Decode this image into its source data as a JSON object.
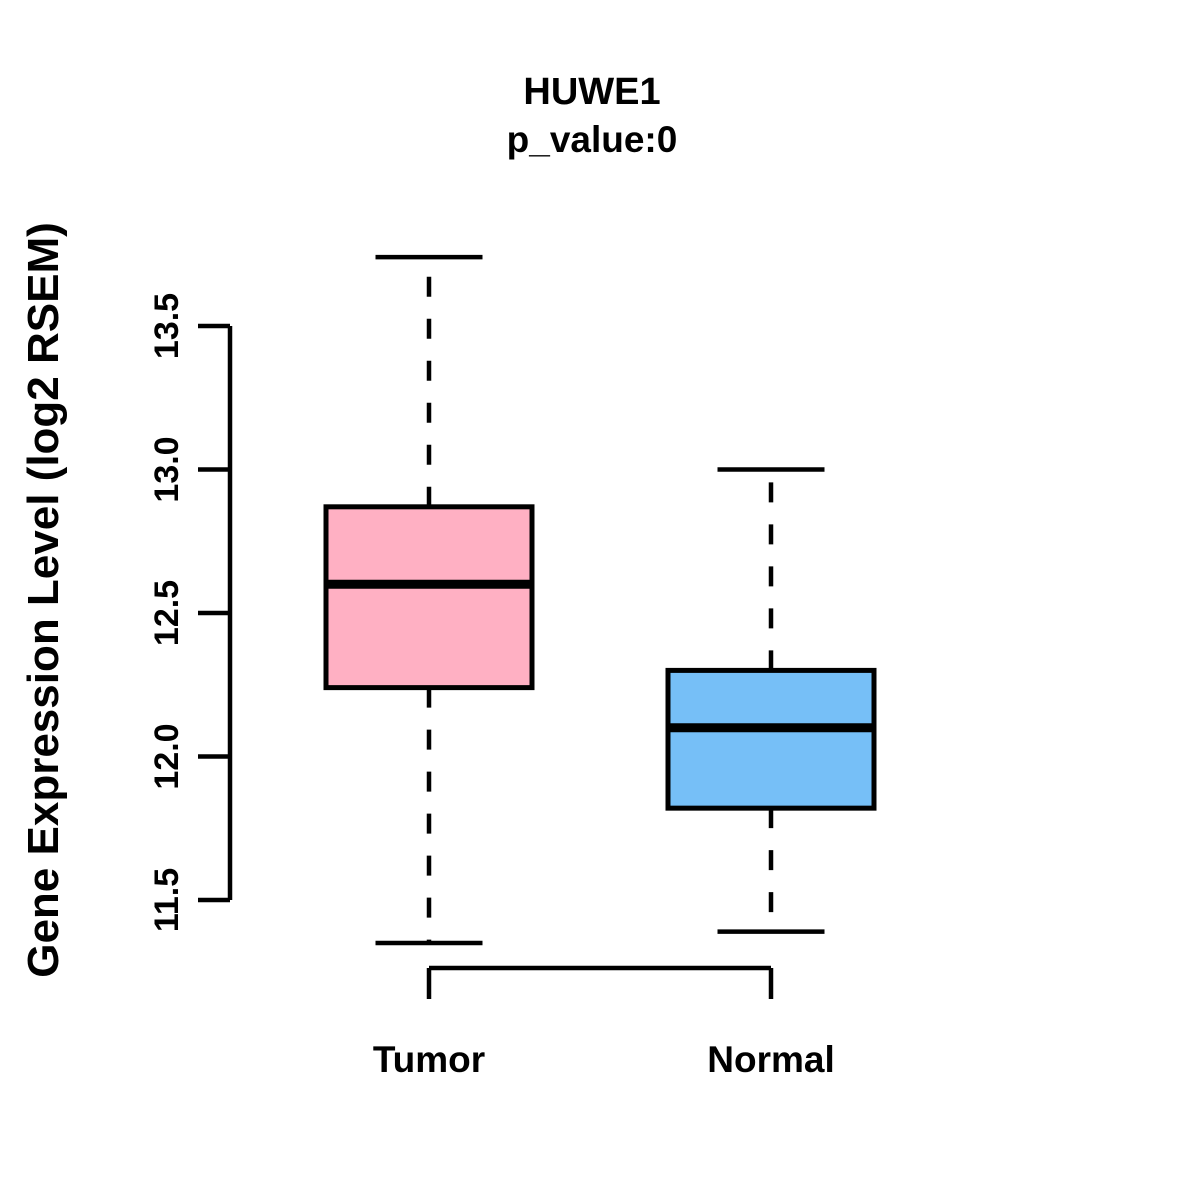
{
  "figure": {
    "background": "#ffffff",
    "line_color": "#000000"
  },
  "chart_data": {
    "type": "boxplot",
    "title": "HUWE1",
    "subtitle": "p_value:0",
    "xlabel": "",
    "ylabel": "Gene Expression Level (log2 RSEM)",
    "categories": [
      "Tumor",
      "Normal"
    ],
    "yticks": [
      11.5,
      12.0,
      12.5,
      13.0,
      13.5
    ],
    "ylim": [
      11.3,
      13.8
    ],
    "grid": false,
    "legend": false,
    "series": [
      {
        "name": "Tumor",
        "color": "#FFB0C3",
        "lower_whisker": 11.35,
        "q1": 12.24,
        "median": 12.6,
        "q3": 12.87,
        "upper_whisker": 13.74
      },
      {
        "name": "Normal",
        "color": "#76BFF7",
        "lower_whisker": 11.39,
        "q1": 11.82,
        "median": 12.1,
        "q3": 12.3,
        "upper_whisker": 13.0
      }
    ]
  }
}
